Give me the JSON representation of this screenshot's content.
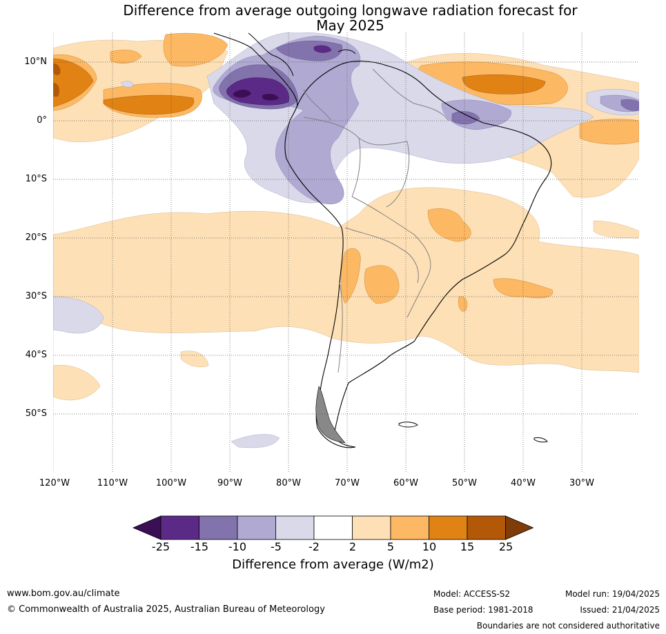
{
  "title": {
    "line1": "Difference from average outgoing longwave radiation forecast for",
    "line2": "May 2025"
  },
  "map": {
    "lat_labels": [
      "10°N",
      "0°",
      "10°S",
      "20°S",
      "30°S",
      "40°S",
      "50°S"
    ],
    "lon_labels": [
      "120°W",
      "110°W",
      "100°W",
      "90°W",
      "80°W",
      "70°W",
      "60°W",
      "50°W",
      "40°W",
      "30°W"
    ]
  },
  "colorbar": {
    "ticks": [
      "-25",
      "-15",
      "-10",
      "-5",
      "-2",
      "2",
      "5",
      "10",
      "15",
      "25"
    ],
    "colors": [
      "#3b0f56",
      "#5b2a86",
      "#8273ad",
      "#b0a9d2",
      "#d9d9ea",
      "#ffffff",
      "#fee0b6",
      "#fdb863",
      "#e08214",
      "#b35806",
      "#7f3b08"
    ],
    "label": "Difference from average (W/m2)"
  },
  "footer": {
    "website": "www.bom.gov.au/climate",
    "copyright": "© Commonwealth of Australia 2025, Australian Bureau of Meteorology",
    "model": "Model: ACCESS-S2",
    "base_period": "Base period: 1981-2018",
    "model_run": "Model run: 19/04/2025",
    "issued": "Issued: 21/04/2025",
    "disclaimer": "Boundaries are not considered authoritative"
  }
}
